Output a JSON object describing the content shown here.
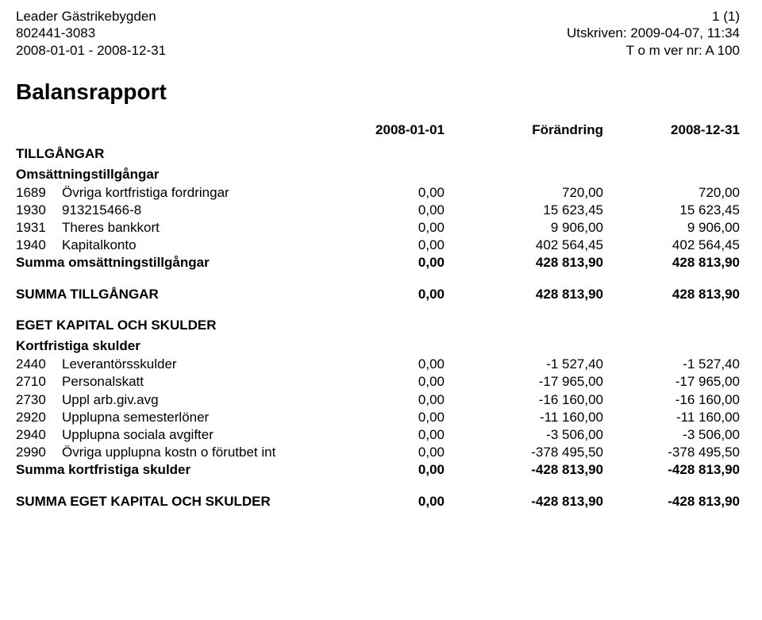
{
  "header": {
    "left": {
      "org_name": "Leader Gästrikebygden",
      "org_no": "802441-3083",
      "period": "2008-01-01 - 2008-12-31"
    },
    "right": {
      "page": "1 (1)",
      "printed": "Utskriven: 2009-04-07, 11:34",
      "version": "T o m ver nr: A 100"
    }
  },
  "title": "Balansrapport",
  "columns": {
    "c1": "2008-01-01",
    "c2": "Förändring",
    "c3": "2008-12-31"
  },
  "sections": {
    "tillgangar_title": "TILLGÅNGAR",
    "oms_title": "Omsättningstillgångar",
    "rows_oms": [
      {
        "acct": "1689",
        "name": "Övriga kortfristiga fordringar",
        "c1": "0,00",
        "c2": "720,00",
        "c3": "720,00"
      },
      {
        "acct": "1930",
        "name": "913215466-8",
        "c1": "0,00",
        "c2": "15 623,45",
        "c3": "15 623,45"
      },
      {
        "acct": "1931",
        "name": "Theres bankkort",
        "c1": "0,00",
        "c2": "9 906,00",
        "c3": "9 906,00"
      },
      {
        "acct": "1940",
        "name": "Kapitalkonto",
        "c1": "0,00",
        "c2": "402 564,45",
        "c3": "402 564,45"
      }
    ],
    "sum_oms": {
      "name": "Summa omsättningstillgångar",
      "c1": "0,00",
      "c2": "428 813,90",
      "c3": "428 813,90"
    },
    "sum_tillg": {
      "name": "SUMMA TILLGÅNGAR",
      "c1": "0,00",
      "c2": "428 813,90",
      "c3": "428 813,90"
    },
    "ek_title": "EGET KAPITAL OCH SKULDER",
    "ks_title": "Kortfristiga skulder",
    "rows_ks": [
      {
        "acct": "2440",
        "name": "Leverantörsskulder",
        "c1": "0,00",
        "c2": "-1 527,40",
        "c3": "-1 527,40"
      },
      {
        "acct": "2710",
        "name": "Personalskatt",
        "c1": "0,00",
        "c2": "-17 965,00",
        "c3": "-17 965,00"
      },
      {
        "acct": "2730",
        "name": "Uppl arb.giv.avg",
        "c1": "0,00",
        "c2": "-16 160,00",
        "c3": "-16 160,00"
      },
      {
        "acct": "2920",
        "name": "Upplupna semesterlöner",
        "c1": "0,00",
        "c2": "-11 160,00",
        "c3": "-11 160,00"
      },
      {
        "acct": "2940",
        "name": "Upplupna sociala avgifter",
        "c1": "0,00",
        "c2": "-3 506,00",
        "c3": "-3 506,00"
      },
      {
        "acct": "2990",
        "name": "Övriga upplupna kostn o förutbet int",
        "c1": "0,00",
        "c2": "-378 495,50",
        "c3": "-378 495,50"
      }
    ],
    "sum_ks": {
      "name": "Summa kortfristiga skulder",
      "c1": "0,00",
      "c2": "-428 813,90",
      "c3": "-428 813,90"
    },
    "sum_ek": {
      "name": "SUMMA EGET KAPITAL OCH SKULDER",
      "c1": "0,00",
      "c2": "-428 813,90",
      "c3": "-428 813,90"
    }
  }
}
